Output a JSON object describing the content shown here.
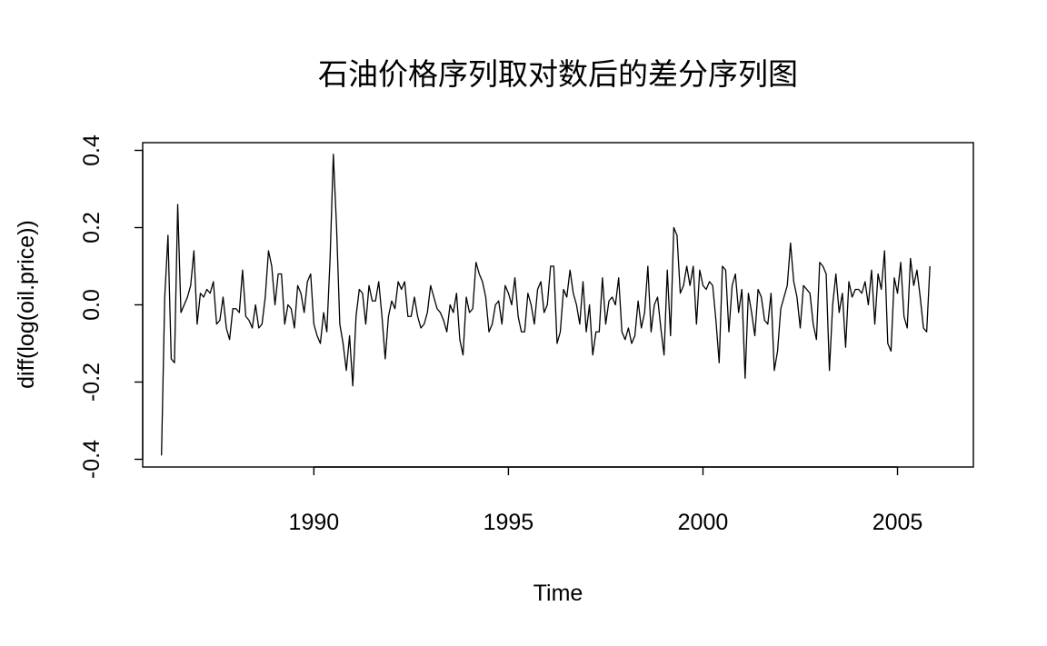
{
  "chart_data": {
    "type": "line",
    "title": "石油价格序列取对数后的差分序列图",
    "xlabel": "Time",
    "ylabel": "diff(log(oil.price))",
    "xlim": [
      1985.6,
      2006.95
    ],
    "ylim": [
      -0.42,
      0.42
    ],
    "x_ticks": [
      1990,
      1995,
      2000,
      2005
    ],
    "x_tick_labels": [
      "1990",
      "1995",
      "2000",
      "2005"
    ],
    "y_ticks": [
      -0.4,
      -0.2,
      0.0,
      0.2,
      0.4
    ],
    "y_tick_labels": [
      "-0.4",
      "-0.2",
      "0.0",
      "0.2",
      "0.4"
    ],
    "grid": false,
    "series": [
      {
        "x_start": 1986.0833,
        "x_step": 0.083333,
        "values": [
          -0.39,
          0.02,
          0.18,
          -0.14,
          -0.15,
          0.26,
          -0.02,
          0.0,
          0.02,
          0.05,
          0.14,
          -0.05,
          0.03,
          0.02,
          0.04,
          0.03,
          0.06,
          -0.05,
          -0.04,
          0.02,
          -0.06,
          -0.09,
          -0.01,
          -0.01,
          -0.02,
          0.09,
          -0.03,
          -0.04,
          -0.06,
          0.0,
          -0.06,
          -0.05,
          0.02,
          0.14,
          0.1,
          0.0,
          0.08,
          0.08,
          -0.05,
          0.0,
          -0.01,
          -0.06,
          0.05,
          0.03,
          -0.02,
          0.06,
          0.08,
          -0.05,
          -0.08,
          -0.1,
          -0.02,
          -0.07,
          0.12,
          0.39,
          0.2,
          -0.05,
          -0.1,
          -0.17,
          -0.08,
          -0.21,
          -0.03,
          0.04,
          0.03,
          -0.05,
          0.05,
          0.01,
          0.01,
          0.06,
          -0.03,
          -0.14,
          -0.03,
          0.01,
          -0.01,
          0.06,
          0.04,
          0.06,
          -0.03,
          -0.03,
          0.02,
          -0.03,
          -0.06,
          -0.05,
          -0.02,
          0.05,
          0.02,
          -0.01,
          -0.02,
          -0.04,
          -0.07,
          0.0,
          -0.02,
          0.03,
          -0.09,
          -0.13,
          0.02,
          -0.02,
          -0.01,
          0.11,
          0.08,
          0.06,
          0.02,
          -0.07,
          -0.05,
          0.0,
          0.01,
          -0.05,
          0.05,
          0.03,
          0.0,
          0.07,
          -0.03,
          -0.07,
          -0.07,
          0.03,
          0.0,
          -0.05,
          0.04,
          0.06,
          -0.02,
          0.0,
          0.1,
          0.1,
          -0.1,
          -0.07,
          0.04,
          0.02,
          0.09,
          0.03,
          0.0,
          -0.05,
          0.06,
          -0.07,
          0.0,
          -0.13,
          -0.07,
          -0.07,
          0.07,
          -0.05,
          0.01,
          0.02,
          0.0,
          0.07,
          -0.07,
          -0.09,
          -0.06,
          -0.1,
          -0.08,
          0.01,
          -0.06,
          -0.02,
          0.1,
          -0.07,
          0.0,
          0.02,
          -0.06,
          -0.13,
          0.09,
          -0.08,
          0.2,
          0.18,
          0.03,
          0.05,
          0.1,
          0.05,
          0.1,
          -0.05,
          0.09,
          0.05,
          0.04,
          0.06,
          0.05,
          -0.04,
          -0.15,
          0.1,
          0.09,
          -0.07,
          0.05,
          0.08,
          -0.02,
          0.04,
          -0.19,
          0.03,
          -0.02,
          -0.08,
          0.04,
          0.02,
          -0.04,
          -0.05,
          0.03,
          -0.17,
          -0.12,
          -0.01,
          0.02,
          0.05,
          0.16,
          0.06,
          0.02,
          -0.06,
          0.05,
          0.04,
          0.03,
          -0.05,
          -0.09,
          0.11,
          0.1,
          0.08,
          -0.17,
          0.0,
          0.08,
          -0.02,
          0.03,
          -0.11,
          0.06,
          0.02,
          0.04,
          0.04,
          0.03,
          0.06,
          0.0,
          0.09,
          -0.05,
          0.08,
          0.04,
          0.14,
          -0.1,
          -0.12,
          0.07,
          0.03,
          0.11,
          -0.03,
          -0.06,
          0.12,
          0.05,
          0.09,
          0.02,
          -0.06,
          -0.07,
          0.1
        ]
      }
    ]
  }
}
